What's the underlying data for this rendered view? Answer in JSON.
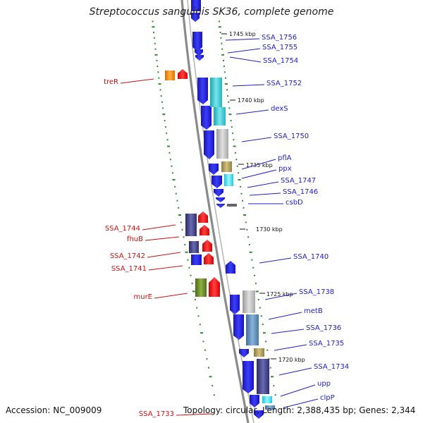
{
  "title": "Streptococcus sanguinis SK36, complete genome",
  "accession": "Accession: NC_009009",
  "topology": "Topology: circular, Length: 2,388,435 bp; Genes: 2,344",
  "colors": {
    "forward_label": "#2020cc",
    "reverse_label": "#cc1111",
    "backbone": "#8a8a8a",
    "tick": "#2e8b2e"
  },
  "kbp_marks": [
    "1745 kbp",
    "1740 kbp",
    "1735 kbp",
    "1730 kbp",
    "1725 kbp",
    "1720 kbp"
  ],
  "forward_genes": [
    {
      "name": "SSA_1756"
    },
    {
      "name": "SSA_1755"
    },
    {
      "name": "SSA_1754"
    },
    {
      "name": "SSA_1752"
    },
    {
      "name": "dexS"
    },
    {
      "name": "SSA_1750"
    },
    {
      "name": "pflA"
    },
    {
      "name": "ppx"
    },
    {
      "name": "SSA_1747"
    },
    {
      "name": "SSA_1746"
    },
    {
      "name": "csbD"
    },
    {
      "name": "SSA_1740"
    },
    {
      "name": "SSA_1738"
    },
    {
      "name": "metB"
    },
    {
      "name": "SSA_1736"
    },
    {
      "name": "SSA_1735"
    },
    {
      "name": "SSA_1734"
    },
    {
      "name": "upp"
    },
    {
      "name": "clpP"
    }
  ],
  "reverse_genes": [
    {
      "name": "treR"
    },
    {
      "name": "SSA_1744"
    },
    {
      "name": "fhuB"
    },
    {
      "name": "SSA_1742"
    },
    {
      "name": "SSA_1741"
    },
    {
      "name": "murE"
    },
    {
      "name": "SSA_1733"
    }
  ]
}
